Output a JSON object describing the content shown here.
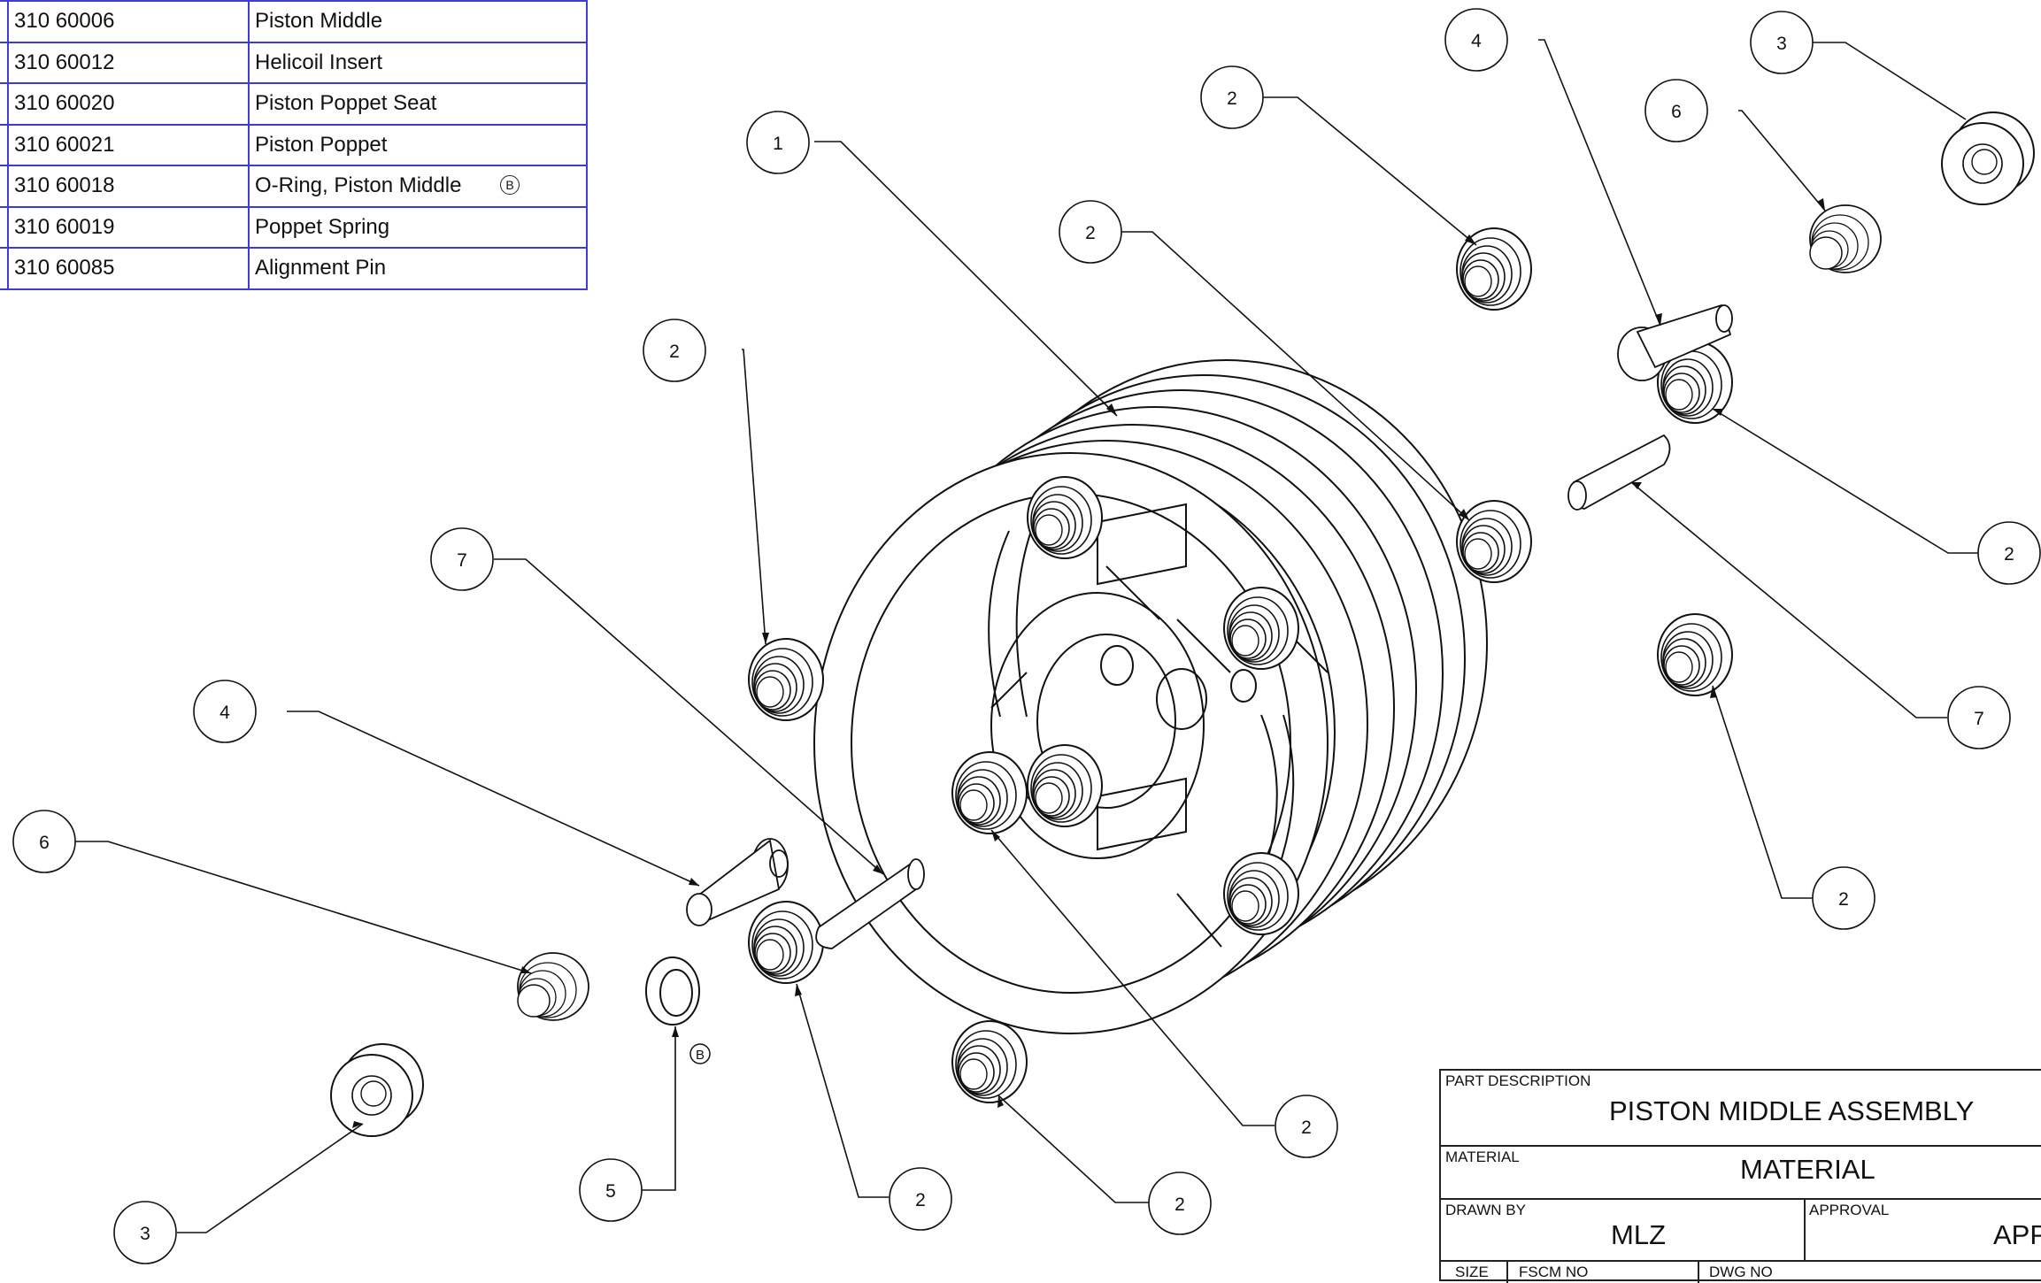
{
  "parts_list": {
    "rows": [
      {
        "part_number": "310 60006",
        "description": "Piston Middle"
      },
      {
        "part_number": "310 60012",
        "description": "Helicoil Insert"
      },
      {
        "part_number": "310 60020",
        "description": "Piston Poppet Seat"
      },
      {
        "part_number": "310 60021",
        "description": "Piston Poppet"
      },
      {
        "part_number": "310 60018",
        "description": "O-Ring, Piston Middle",
        "note": "B"
      },
      {
        "part_number": "310 60019",
        "description": "Poppet Spring"
      },
      {
        "part_number": "310 60085",
        "description": "Alignment Pin"
      }
    ]
  },
  "balloons": [
    "1",
    "2",
    "3",
    "4",
    "5",
    "6",
    "7"
  ],
  "revision_note": "B",
  "title_block": {
    "part_description_label": "PART DESCRIPTION",
    "part_description": "PISTON MIDDLE ASSEMBLY",
    "material_label": "MATERIAL",
    "material": "MATERIAL",
    "drawn_by_label": "DRAWN BY",
    "drawn_by": "MLZ",
    "approval_label": "APPROVAL",
    "approval": "APP",
    "size_label": "SIZE",
    "fscm_label": "FSCM NO",
    "dwg_label": "DWG NO"
  }
}
